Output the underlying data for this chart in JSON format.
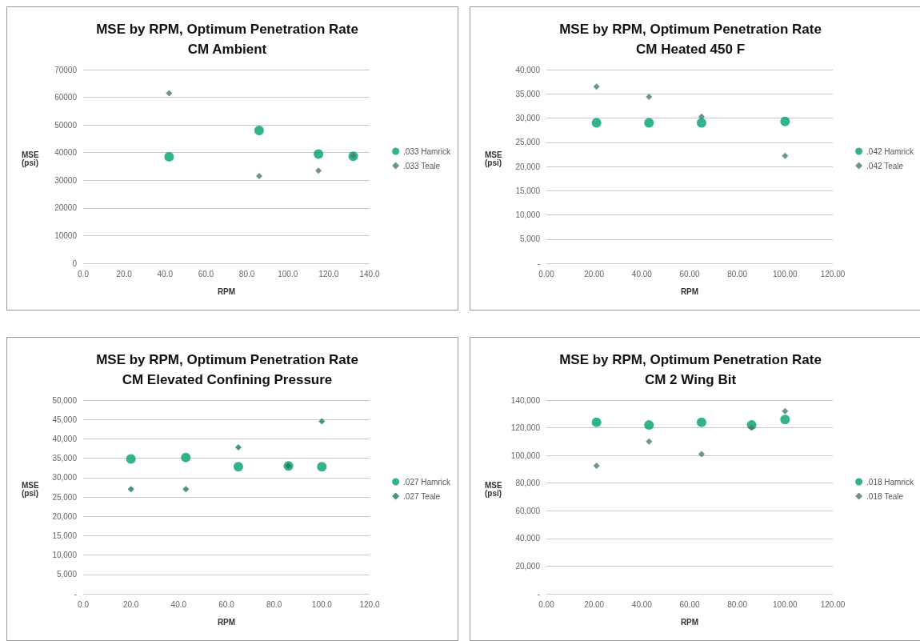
{
  "chart_data": [
    {
      "type": "scatter",
      "title": "MSE by RPM, Optimum Penetration Rate",
      "subtitle": "CM Ambient",
      "xlabel": "RPM",
      "ylabel": "MSE\n(psi)",
      "xlim": [
        0,
        140
      ],
      "xticks": [
        {
          "value": 0,
          "label": "0.0"
        },
        {
          "value": 20,
          "label": "20.0"
        },
        {
          "value": 40,
          "label": "40.0"
        },
        {
          "value": 60,
          "label": "60.0"
        },
        {
          "value": 80,
          "label": "80.0"
        },
        {
          "value": 100,
          "label": "100.0"
        },
        {
          "value": 120,
          "label": "120.0"
        },
        {
          "value": 140,
          "label": "140.0"
        }
      ],
      "ylim": [
        0,
        70000
      ],
      "yticks": [
        0,
        10000,
        20000,
        30000,
        40000,
        50000,
        60000,
        70000
      ],
      "grid": "y",
      "legend": "right",
      "series": [
        {
          "name": ".033 Hamrick",
          "color": "#00a070",
          "marker": "circle",
          "x": [
            42,
            86,
            115,
            132
          ],
          "values": [
            38500,
            48000,
            39500,
            38700
          ]
        },
        {
          "name": ".033 Teale",
          "color": "#4a7a70",
          "marker": "diamond",
          "x": [
            42,
            86,
            115,
            132
          ],
          "values": [
            61500,
            31500,
            33500,
            38800
          ]
        }
      ]
    },
    {
      "type": "scatter",
      "title": "MSE by RPM, Optimum Penetration Rate",
      "subtitle": "CM Heated 450 F",
      "xlabel": "RPM",
      "ylabel": "MSE\n(psi)",
      "xlim": [
        0,
        120
      ],
      "xticks": [
        {
          "value": 0,
          "label": "0.00"
        },
        {
          "value": 20,
          "label": "20.00"
        },
        {
          "value": 40,
          "label": "40.00"
        },
        {
          "value": 60,
          "label": "60.00"
        },
        {
          "value": 80,
          "label": "80.00"
        },
        {
          "value": 100,
          "label": "100.00"
        },
        {
          "value": 120,
          "label": "120.00"
        }
      ],
      "ylim": [
        0,
        40000
      ],
      "yticks": [
        {
          "value": 0,
          "label": "-"
        },
        {
          "value": 5000,
          "label": "5,000"
        },
        {
          "value": 10000,
          "label": "10,000"
        },
        {
          "value": 15000,
          "label": "15,000"
        },
        {
          "value": 20000,
          "label": "20,000"
        },
        {
          "value": 25000,
          "label": "25,000"
        },
        {
          "value": 30000,
          "label": "30,000"
        },
        {
          "value": 35000,
          "label": "35,000"
        },
        {
          "value": 40000,
          "label": "40,000"
        }
      ],
      "grid": "y",
      "legend": "right",
      "series": [
        {
          "name": ".042 Hamrick",
          "color": "#00a070",
          "marker": "circle",
          "x": [
            21,
            43,
            65,
            100
          ],
          "values": [
            29000,
            29000,
            29000,
            29300
          ]
        },
        {
          "name": ".042 Teale",
          "color": "#4a7a70",
          "marker": "diamond",
          "x": [
            21,
            43,
            65,
            100
          ],
          "values": [
            36500,
            34400,
            30300,
            22200
          ]
        }
      ]
    },
    {
      "type": "scatter",
      "title": "MSE by RPM, Optimum Penetration Rate",
      "subtitle": "CM Elevated Confining Pressure",
      "xlabel": "RPM",
      "ylabel": "MSE\n(psi)",
      "xlim": [
        0,
        120
      ],
      "xticks": [
        {
          "value": 0,
          "label": "0.0"
        },
        {
          "value": 20,
          "label": "20.0"
        },
        {
          "value": 40,
          "label": "40.0"
        },
        {
          "value": 60,
          "label": "60.0"
        },
        {
          "value": 80,
          "label": "80.0"
        },
        {
          "value": 100,
          "label": "100.0"
        },
        {
          "value": 120,
          "label": "120.0"
        }
      ],
      "ylim": [
        0,
        50000
      ],
      "yticks": [
        {
          "value": 0,
          "label": "-"
        },
        {
          "value": 5000,
          "label": "5,000"
        },
        {
          "value": 10000,
          "label": "10,000"
        },
        {
          "value": 15000,
          "label": "15,000"
        },
        {
          "value": 20000,
          "label": "20,000"
        },
        {
          "value": 25000,
          "label": "25,000"
        },
        {
          "value": 30000,
          "label": "30,000"
        },
        {
          "value": 35000,
          "label": "35,000"
        },
        {
          "value": 40000,
          "label": "40,000"
        },
        {
          "value": 45000,
          "label": "45,000"
        },
        {
          "value": 50000,
          "label": "50,000"
        }
      ],
      "grid": "y",
      "legend": "right",
      "series": [
        {
          "name": ".027 Hamrick",
          "color": "#00a070",
          "marker": "circle",
          "x": [
            20,
            43,
            65,
            86,
            100
          ],
          "values": [
            34800,
            35200,
            32800,
            33000,
            32800
          ]
        },
        {
          "name": ".027 Teale",
          "color": "#1a7a5a",
          "marker": "diamond",
          "x": [
            20,
            43,
            65,
            86,
            100
          ],
          "values": [
            27000,
            27000,
            37800,
            33000,
            44500
          ]
        }
      ]
    },
    {
      "type": "scatter",
      "title": "MSE by RPM, Optimum Penetration Rate",
      "subtitle": "CM 2 Wing Bit",
      "xlabel": "RPM",
      "ylabel": "MSE\n(psi)",
      "xlim": [
        0,
        120
      ],
      "xticks": [
        {
          "value": 0,
          "label": "0.00"
        },
        {
          "value": 20,
          "label": "20.00"
        },
        {
          "value": 40,
          "label": "40.00"
        },
        {
          "value": 60,
          "label": "60.00"
        },
        {
          "value": 80,
          "label": "80.00"
        },
        {
          "value": 100,
          "label": "100.00"
        },
        {
          "value": 120,
          "label": "120.00"
        }
      ],
      "ylim": [
        0,
        140000
      ],
      "yticks": [
        {
          "value": 0,
          "label": "-"
        },
        {
          "value": 20000,
          "label": "20,000"
        },
        {
          "value": 40000,
          "label": "40,000"
        },
        {
          "value": 60000,
          "label": "60,000"
        },
        {
          "value": 80000,
          "label": "80,000"
        },
        {
          "value": 100000,
          "label": "100,000"
        },
        {
          "value": 120000,
          "label": "120,000"
        },
        {
          "value": 140000,
          "label": "140,000"
        }
      ],
      "grid": "y",
      "legend": "right",
      "series": [
        {
          "name": ".018 Hamrick",
          "color": "#00a070",
          "marker": "circle",
          "x": [
            21,
            43,
            65,
            86,
            100
          ],
          "values": [
            124000,
            122000,
            124000,
            122000,
            126000
          ]
        },
        {
          "name": ".018 Teale",
          "color": "#4a7a6a",
          "marker": "diamond",
          "x": [
            21,
            43,
            65,
            86,
            100
          ],
          "values": [
            92500,
            110000,
            101000,
            120000,
            132000
          ]
        }
      ]
    }
  ]
}
